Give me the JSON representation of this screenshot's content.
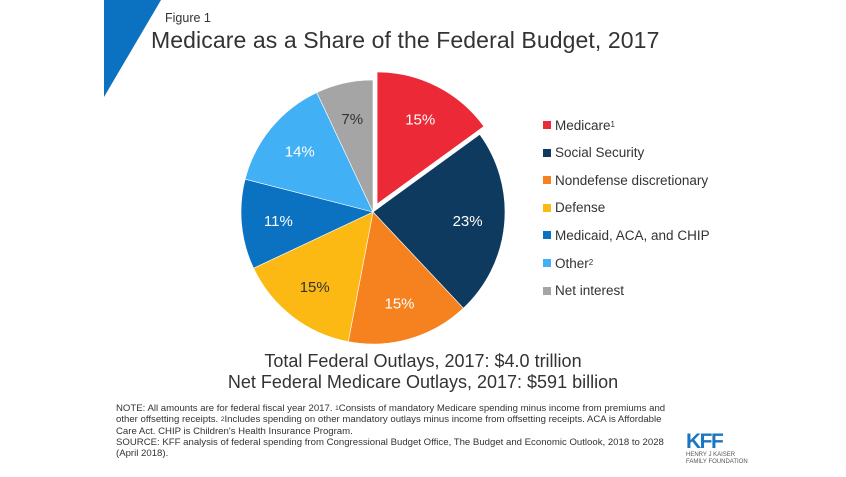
{
  "figure_label": "Figure 1",
  "title": "Medicare as a Share of the Federal Budget, 2017",
  "colors": {
    "accent_triangle": "#0a72c0",
    "text": "#333333"
  },
  "chart_data": {
    "type": "pie",
    "title": "Medicare as a Share of the Federal Budget, 2017",
    "start": "12 o'clock, clockwise",
    "exploded_slice": "Medicare",
    "slices": [
      {
        "name": "Medicare",
        "superscript": "1",
        "value": 15,
        "label": "15%",
        "color": "#ec2a37",
        "label_color": "#ffffff"
      },
      {
        "name": "Social Security",
        "superscript": "",
        "value": 23,
        "label": "23%",
        "color": "#0f3a5f",
        "label_color": "#ffffff"
      },
      {
        "name": "Nondefense discretionary",
        "superscript": "",
        "value": 15,
        "label": "15%",
        "color": "#f5821f",
        "label_color": "#ffffff"
      },
      {
        "name": "Defense",
        "superscript": "",
        "value": 15,
        "label": "15%",
        "color": "#fdb913",
        "label_color": "#333333"
      },
      {
        "name": "Medicaid, ACA, and CHIP",
        "superscript": "",
        "value": 11,
        "label": "11%",
        "color": "#0b72c2",
        "label_color": "#ffffff"
      },
      {
        "name": "Other",
        "superscript": "2",
        "value": 14,
        "label": "14%",
        "color": "#42b0f4",
        "label_color": "#ffffff"
      },
      {
        "name": "Net interest",
        "superscript": "",
        "value": 7,
        "label": "7%",
        "color": "#a5a5a5",
        "label_color": "#333333"
      }
    ],
    "legend_position": "right"
  },
  "totals": {
    "line1": "Total Federal Outlays, 2017: $4.0 trillion",
    "line2": "Net Federal Medicare Outlays, 2017: $591 billion"
  },
  "notes": {
    "note_intro": "NOTE: All amounts are for federal fiscal year 2017. ",
    "fn1_mark": "1",
    "fn1_text": "Consists of mandatory Medicare spending minus income from premiums and other offsetting receipts. ",
    "fn2_mark": "2",
    "fn2_text": "Includes spending on other mandatory outlays minus income from offsetting receipts. ACA is Affordable Care Act. CHIP is Children's Health Insurance Program.",
    "source": "SOURCE: KFF analysis of federal spending from Congressional Budget Office, The Budget and Economic Outlook, 2018 to 2028 (April 2018)."
  },
  "logo": {
    "text": "KFF",
    "subline1": "HENRY J KAISER",
    "subline2": "FAMILY FOUNDATION"
  }
}
